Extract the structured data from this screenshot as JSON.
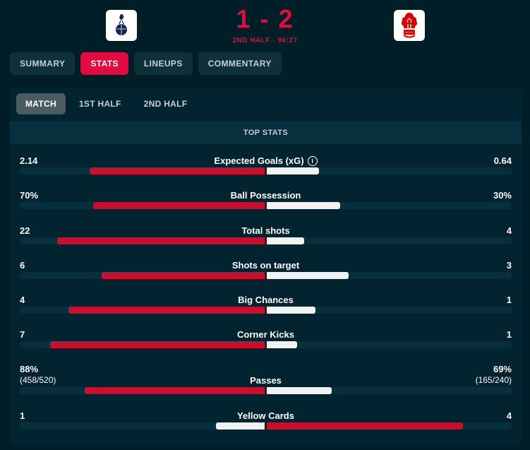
{
  "header": {
    "home_crest_icon": "tottenham-hotspur-crest-icon",
    "away_crest_icon": "nottingham-forest-crest-icon",
    "score": "1 - 2",
    "status": "2ND HALF · 96:27"
  },
  "tabs": [
    {
      "label": "SUMMARY",
      "active": false
    },
    {
      "label": "STATS",
      "active": true
    },
    {
      "label": "LINEUPS",
      "active": false
    },
    {
      "label": "COMMENTARY",
      "active": false
    }
  ],
  "period_tabs": [
    {
      "label": "MATCH",
      "active": true
    },
    {
      "label": "1ST HALF",
      "active": false
    },
    {
      "label": "2ND HALF",
      "active": false
    }
  ],
  "section_title": "TOP STATS",
  "colors": {
    "home": "#c8102e",
    "away": "#f2f2f2",
    "accent": "#e30a3f"
  },
  "stats": [
    {
      "name": "Expected Goals (xG)",
      "home": "2.14",
      "away": "0.64",
      "home_value": 2.14,
      "away_value": 0.64,
      "scale": 3,
      "info": true,
      "leader": "home"
    },
    {
      "name": "Ball Possession",
      "home": "70%",
      "away": "30%",
      "home_value": 70,
      "away_value": 30,
      "scale": 100,
      "leader": "home"
    },
    {
      "name": "Total shots",
      "home": "22",
      "away": "4",
      "home_value": 22,
      "away_value": 4,
      "scale": 26,
      "leader": "home"
    },
    {
      "name": "Shots on target",
      "home": "6",
      "away": "3",
      "home_value": 6,
      "away_value": 3,
      "scale": 9,
      "leader": "home"
    },
    {
      "name": "Big Chances",
      "home": "4",
      "away": "1",
      "home_value": 4,
      "away_value": 1,
      "scale": 5,
      "leader": "home"
    },
    {
      "name": "Corner Kicks",
      "home": "7",
      "away": "1",
      "home_value": 7,
      "away_value": 1,
      "scale": 8,
      "leader": "home"
    },
    {
      "name": "Passes",
      "home": "88%",
      "away": "69%",
      "home_sub": "(458/520)",
      "away_sub": "(165/240)",
      "home_value": 458,
      "away_value": 165,
      "scale": 623,
      "leader": "home"
    },
    {
      "name": "Yellow Cards",
      "home": "1",
      "away": "4",
      "home_value": 1,
      "away_value": 4,
      "scale": 5,
      "leader": "away"
    }
  ],
  "info_icon": "info-icon"
}
